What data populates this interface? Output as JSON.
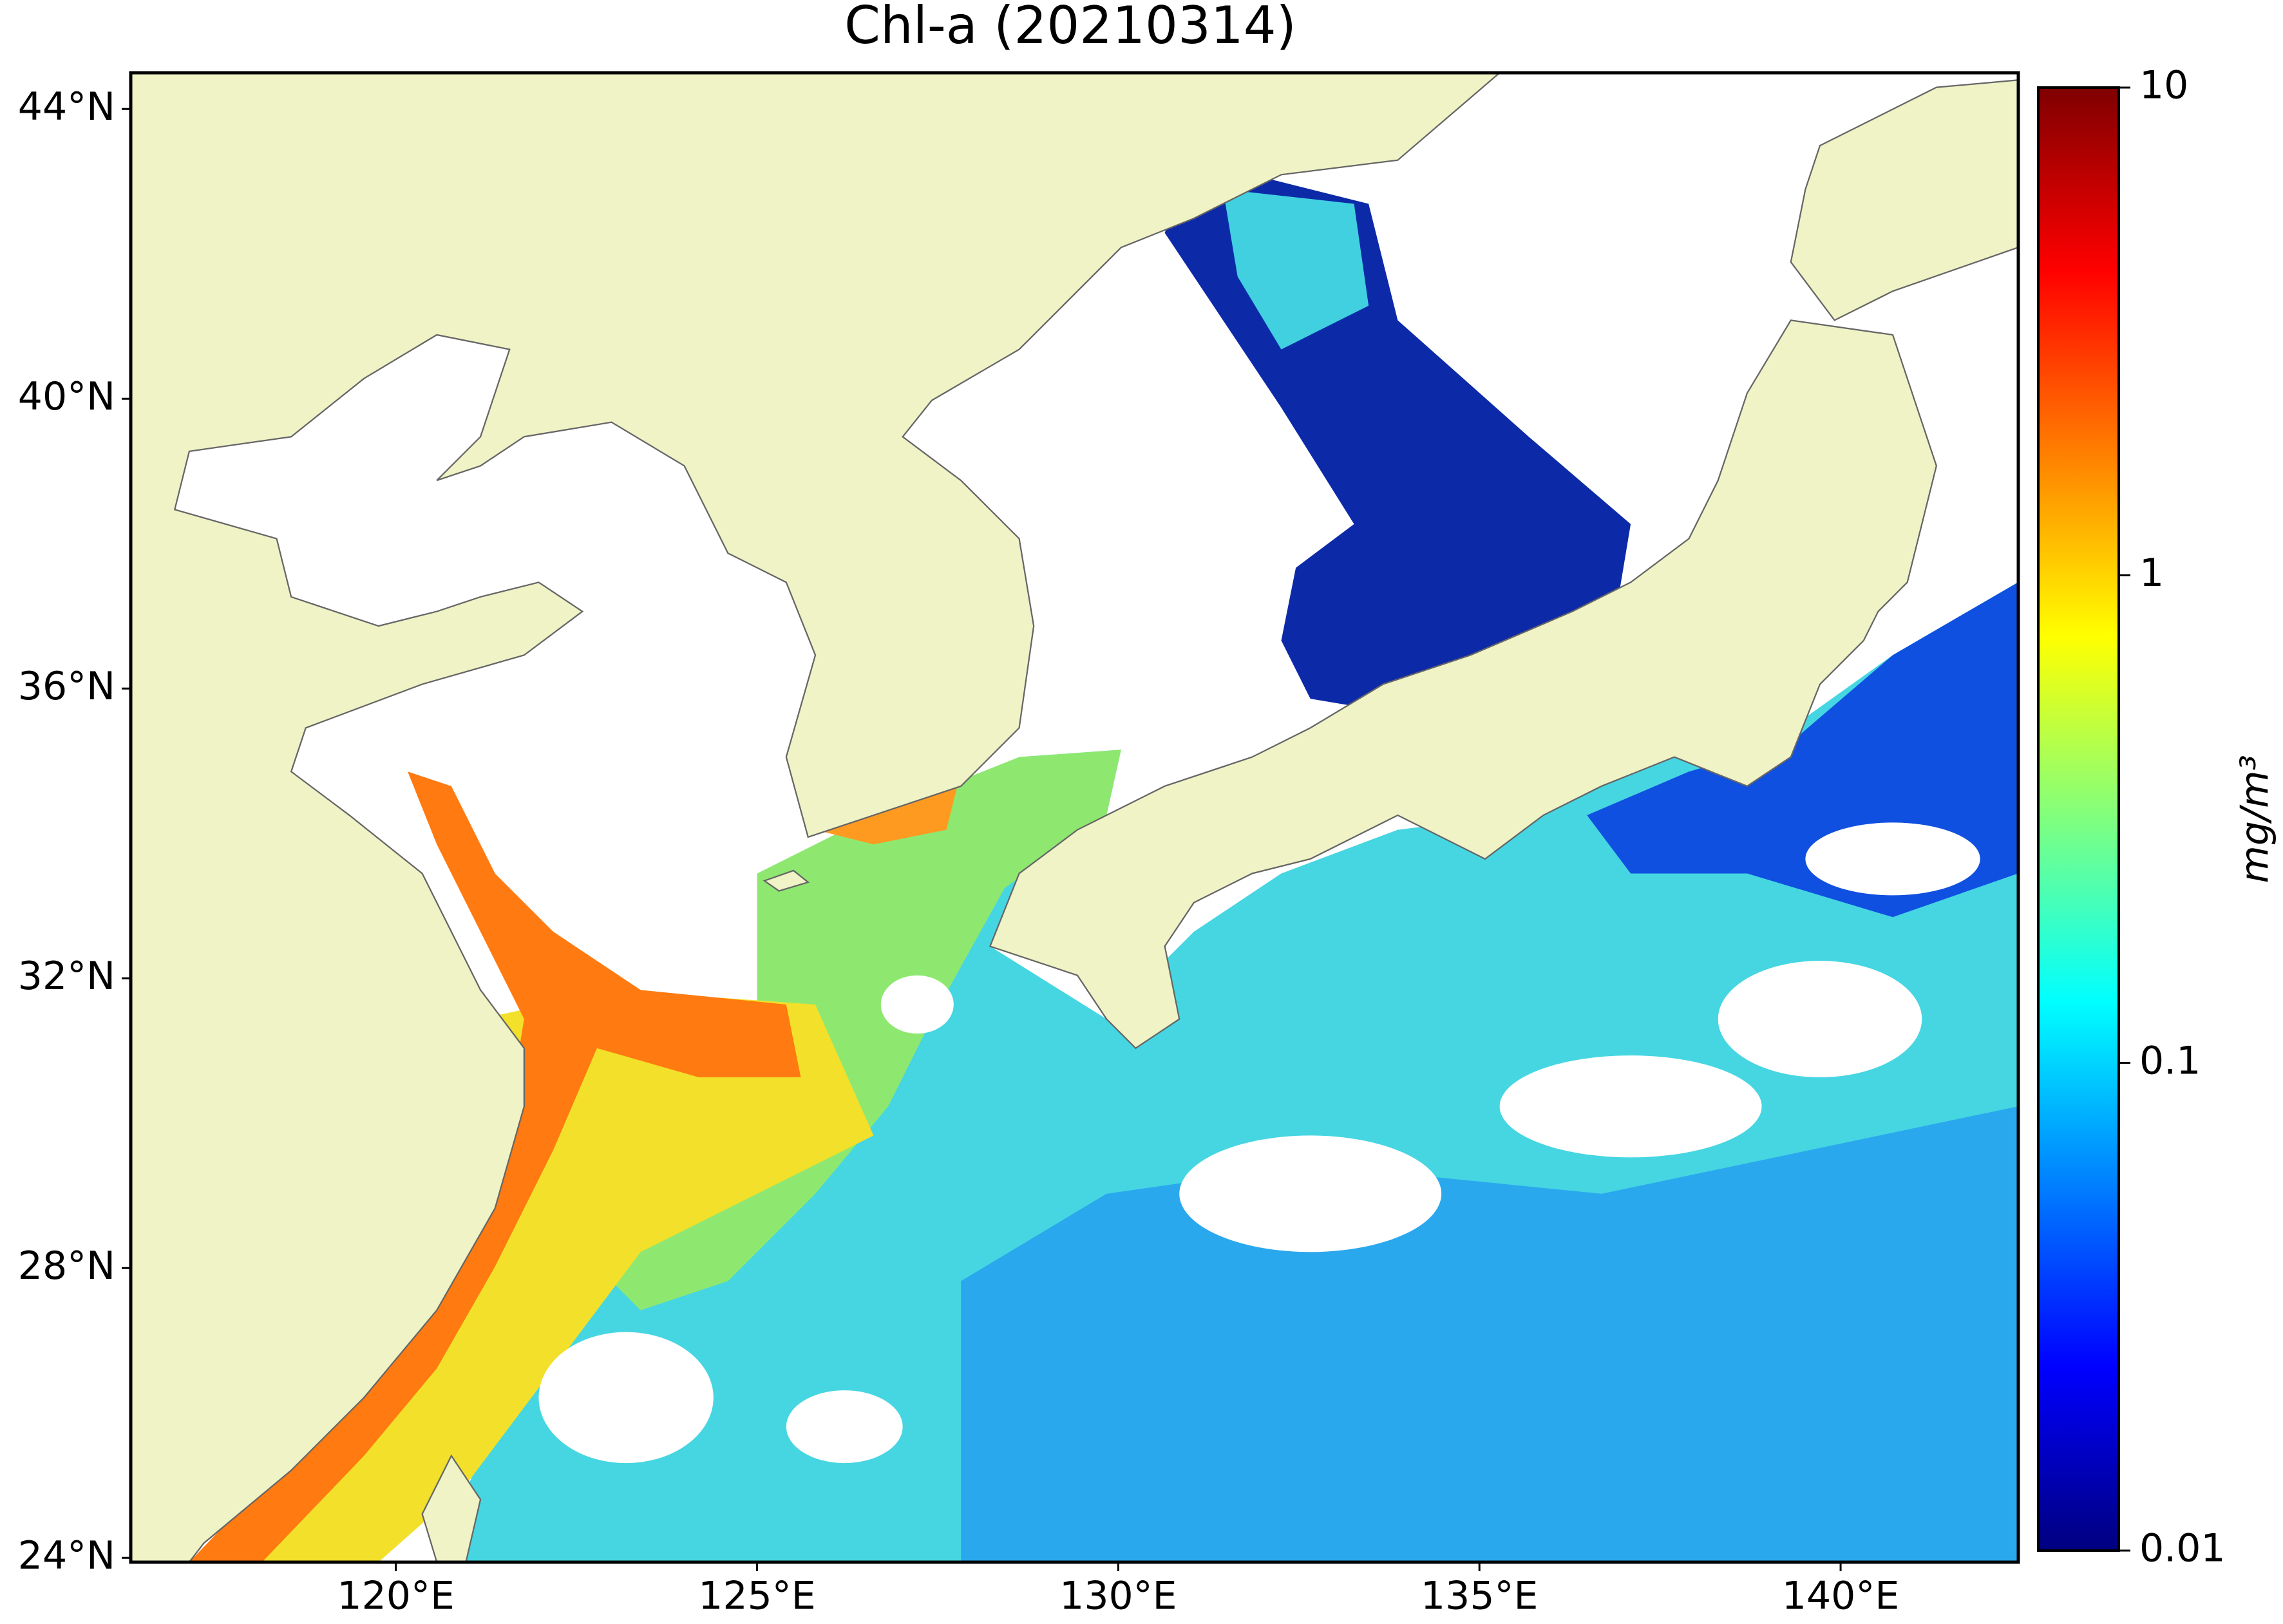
{
  "title": "Chl-a (20210314)",
  "map": {
    "xlim": [
      116.33,
      142.46
    ],
    "ylim": [
      23.94,
      44.5
    ],
    "xticks": [
      {
        "value": 120,
        "label": "120°E"
      },
      {
        "value": 125,
        "label": "125°E"
      },
      {
        "value": 130,
        "label": "130°E"
      },
      {
        "value": 135,
        "label": "135°E"
      },
      {
        "value": 140,
        "label": "140°E"
      }
    ],
    "yticks": [
      {
        "value": 24,
        "label": "24°N"
      },
      {
        "value": 28,
        "label": "28°N"
      },
      {
        "value": 32,
        "label": "32°N"
      },
      {
        "value": 36,
        "label": "36°N"
      },
      {
        "value": 40,
        "label": "40°N"
      },
      {
        "value": 44,
        "label": "44°N"
      }
    ]
  },
  "colorbar": {
    "label": "mg/m³",
    "scale": "log",
    "lim": [
      0.01,
      10
    ],
    "ticks": [
      0.01,
      0.1,
      1,
      10
    ],
    "colormap": "jet"
  }
}
